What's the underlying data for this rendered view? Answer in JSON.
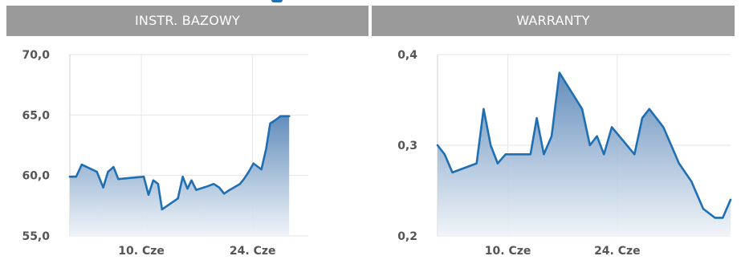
{
  "panels": {
    "left_header": "INSTR. BAZOWY",
    "right_header": "WARRANTY"
  },
  "colors": {
    "line": "#1f6fb2",
    "fill_top": "#5b87b8",
    "fill_bottom": "#eef3f8",
    "header_bg": "#9a9a9a",
    "grid": "#e6e6e6"
  },
  "chart_data": [
    {
      "type": "area",
      "title": "INSTR. BAZOWY",
      "xlabel": "",
      "ylabel": "",
      "ylim": [
        55,
        70
      ],
      "yticks": [
        "70,0",
        "65,0",
        "60,0",
        "55,0"
      ],
      "ytick_values": [
        70,
        65,
        60,
        55
      ],
      "xticks": [
        "10. Cze",
        "24. Cze"
      ],
      "xtick_values": [
        10,
        24
      ],
      "xlim": [
        1,
        31
      ],
      "grid": true,
      "series": [
        {
          "x": [
            1,
            1.8,
            2.5,
            4.4,
            5.2,
            5.8,
            6.5,
            7.1,
            8.6,
            10.3,
            10.9,
            11.5,
            12.1,
            12.6,
            14.6,
            15.2,
            15.8,
            16.3,
            16.9,
            18.3,
            19.1,
            19.8,
            20.4,
            21.1,
            22.4,
            22.9,
            23.5,
            24.1,
            25.1,
            25.7,
            26.2,
            26.9,
            27.5,
            28.0,
            28.6
          ],
          "values": [
            59.9,
            59.9,
            60.9,
            60.3,
            59.0,
            60.3,
            60.7,
            59.7,
            59.8,
            59.9,
            58.4,
            59.6,
            59.3,
            57.2,
            58.1,
            59.9,
            58.9,
            59.6,
            58.8,
            59.1,
            59.3,
            59.0,
            58.5,
            58.8,
            59.3,
            59.7,
            60.3,
            61.0,
            60.5,
            62.2,
            64.3,
            64.6,
            64.9,
            64.9,
            64.9
          ]
        }
      ]
    },
    {
      "type": "area",
      "title": "WARRANTY",
      "xlabel": "",
      "ylabel": "",
      "ylim": [
        0.2,
        0.4
      ],
      "yticks": [
        "0,4",
        "0,3",
        "0,2"
      ],
      "ytick_values": [
        0.4,
        0.3,
        0.2
      ],
      "xticks": [
        "10. Cze",
        "24. Cze"
      ],
      "xtick_values": [
        10,
        24
      ],
      "xlim": [
        1,
        38.5
      ],
      "grid": true,
      "series": [
        {
          "x": [
            1,
            1.9,
            2.9,
            6.0,
            6.9,
            7.8,
            8.7,
            9.7,
            10.6,
            12.9,
            13.7,
            14.6,
            15.6,
            16.6,
            19.5,
            20.5,
            21.4,
            22.3,
            23.3,
            26.2,
            27.2,
            28.1,
            29.9,
            31.9,
            33.5,
            35.0,
            36.5,
            37.5,
            38.5
          ],
          "values": [
            0.3,
            0.29,
            0.27,
            0.28,
            0.34,
            0.3,
            0.28,
            0.29,
            0.29,
            0.29,
            0.33,
            0.29,
            0.31,
            0.38,
            0.34,
            0.3,
            0.31,
            0.29,
            0.32,
            0.29,
            0.33,
            0.34,
            0.32,
            0.28,
            0.26,
            0.23,
            0.22,
            0.22,
            0.24
          ]
        }
      ]
    }
  ]
}
